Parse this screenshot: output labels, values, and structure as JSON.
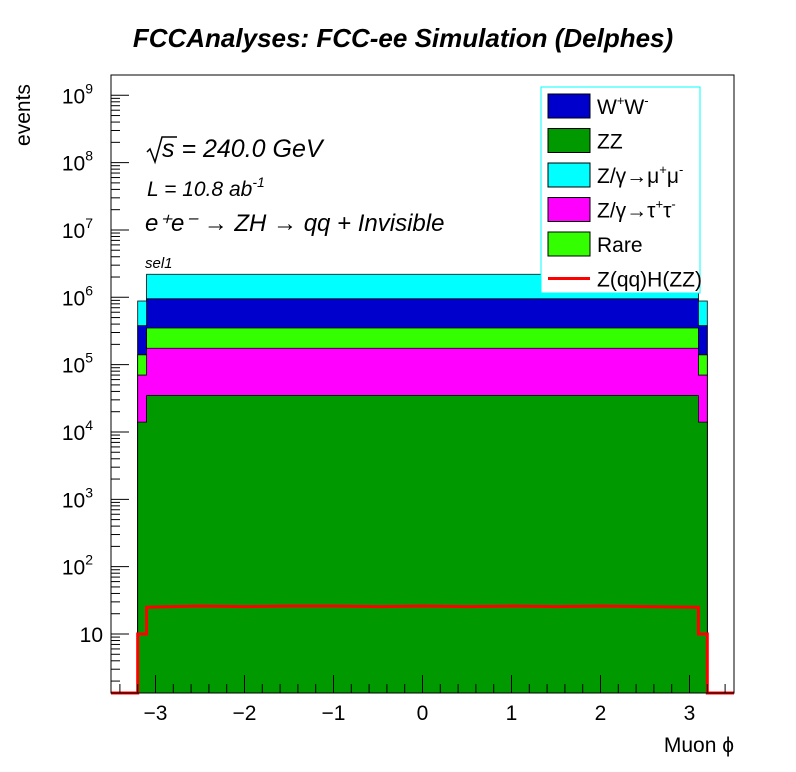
{
  "chart_data": {
    "type": "area",
    "title": "FCCAnalyses: FCC-ee Simulation (Delphes)",
    "xlabel": "Muon ϕ",
    "ylabel": "events",
    "xlim": [
      -3.5,
      3.5
    ],
    "ylim": [
      1.33,
      2000000000
    ],
    "log_y": true,
    "grid": false,
    "legend_position": "top-right",
    "x_ticks": [
      "−3",
      "−2",
      "−1",
      "0",
      "1",
      "2",
      "3"
    ],
    "x_tick_values": [
      -3,
      -2,
      -1,
      0,
      1,
      2,
      3
    ],
    "y_ticks": [
      {
        "base": "10",
        "exp": "9",
        "value": 1000000000
      },
      {
        "base": "10",
        "exp": "8",
        "value": 100000000
      },
      {
        "base": "10",
        "exp": "7",
        "value": 10000000
      },
      {
        "base": "10",
        "exp": "6",
        "value": 1000000
      },
      {
        "base": "10",
        "exp": "5",
        "value": 100000
      },
      {
        "base": "10",
        "exp": "4",
        "value": 10000
      },
      {
        "base": "10",
        "exp": "3",
        "value": 1000
      },
      {
        "base": "10",
        "exp": "2",
        "value": 100
      },
      {
        "base": "10",
        "exp": "",
        "value": 10
      }
    ],
    "annotations": {
      "sqrt_s": "s = 240.0 GeV",
      "lumi": "L = 10.8 ab",
      "lumi_exp": "-1",
      "process": "e⁺e⁻ → ZH → qq + Invisible",
      "selection": "sel1"
    },
    "bin_edges": [
      -3.2,
      -3.1,
      -0.1,
      3.1,
      3.2
    ],
    "stack_order_bottom_to_top": [
      "ZZ",
      "Z/γ→τ⁺τ⁻",
      "Rare",
      "W⁺W⁻",
      "Z/γ→μ⁺μ⁻"
    ],
    "stack_cumulative": [
      {
        "name": "ZZ",
        "color": "#009900",
        "values": [
          14000,
          35000,
          35000,
          14000
        ]
      },
      {
        "name": "Z/γ→τ⁺τ⁻",
        "color": "#ff00ff",
        "values": [
          70000,
          175000,
          175000,
          70000
        ]
      },
      {
        "name": "Rare",
        "color": "#33ff00",
        "values": [
          140000,
          350000,
          350000,
          140000
        ]
      },
      {
        "name": "W⁺W⁻",
        "color": "#0000cc",
        "values": [
          380000,
          950000,
          950000,
          380000
        ]
      },
      {
        "name": "Z/γ→μ⁺μ⁻",
        "color": "#00ffff",
        "values": [
          880000,
          2200000,
          2200000,
          880000
        ]
      }
    ],
    "signal": {
      "name": "Z(qq)H(ZZ)",
      "color": "#ff0000",
      "x": [
        -3.5,
        -3.2,
        -3.2,
        -3.1,
        -3.1,
        -2.8,
        -2.5,
        -2.0,
        -1.5,
        -1.0,
        -0.5,
        0.0,
        0.5,
        1.0,
        1.5,
        2.0,
        2.5,
        3.1,
        3.1,
        3.2,
        3.2,
        3.5
      ],
      "y": [
        1.33,
        1.33,
        10,
        10,
        25,
        25.5,
        26,
        25.5,
        26,
        26,
        25.5,
        26,
        25.5,
        26,
        25.5,
        26,
        25.5,
        25,
        10,
        10,
        1.33,
        1.33
      ]
    },
    "legend": [
      {
        "label": "W",
        "sup1": "+",
        "label2": "W",
        "sup2": "-",
        "color": "#0000cc",
        "kind": "fill"
      },
      {
        "label": "ZZ",
        "color": "#009900",
        "kind": "fill"
      },
      {
        "label": "Z/γ→μ",
        "sup1": "+",
        "label2": "μ",
        "sup2": "-",
        "color": "#00ffff",
        "kind": "fill"
      },
      {
        "label": "Z/γ→τ",
        "sup1": "+",
        "label2": "τ",
        "sup2": "-",
        "color": "#ff00ff",
        "kind": "fill"
      },
      {
        "label": "Rare",
        "color": "#33ff00",
        "kind": "fill"
      },
      {
        "label": "Z(qq)H(ZZ)",
        "color": "#ff0000",
        "kind": "line"
      }
    ]
  }
}
